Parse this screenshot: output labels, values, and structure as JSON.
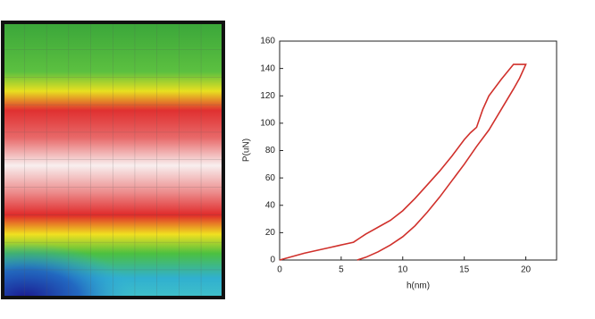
{
  "chart_data": {
    "type": "line",
    "x_label": "h(nm)",
    "y_label": "P(uN)",
    "xlim": [
      0,
      22.5
    ],
    "xticks": [
      0,
      5,
      10,
      15,
      20
    ],
    "ylim": [
      0,
      160
    ],
    "yticks": [
      0,
      20,
      40,
      60,
      80,
      100,
      120,
      140,
      160
    ],
    "series": [
      {
        "color": "#d0302b",
        "x": [
          0,
          2,
          4,
          6,
          6.5,
          7,
          8,
          9,
          10,
          11,
          12,
          13,
          14,
          15,
          15.5,
          16,
          16.5,
          17,
          18,
          19,
          20,
          19.5,
          19,
          18,
          17,
          16,
          15,
          14,
          13,
          12,
          11,
          10,
          9,
          8,
          7,
          6.3
        ],
        "values": [
          0,
          5,
          9,
          13,
          16,
          19,
          24,
          29,
          36,
          45,
          55,
          65,
          76,
          88,
          93,
          97,
          110,
          120,
          132,
          143,
          143,
          133,
          125,
          110,
          95,
          83,
          70,
          58,
          46,
          35,
          25,
          17,
          11,
          6,
          2,
          0
        ]
      }
    ]
  }
}
